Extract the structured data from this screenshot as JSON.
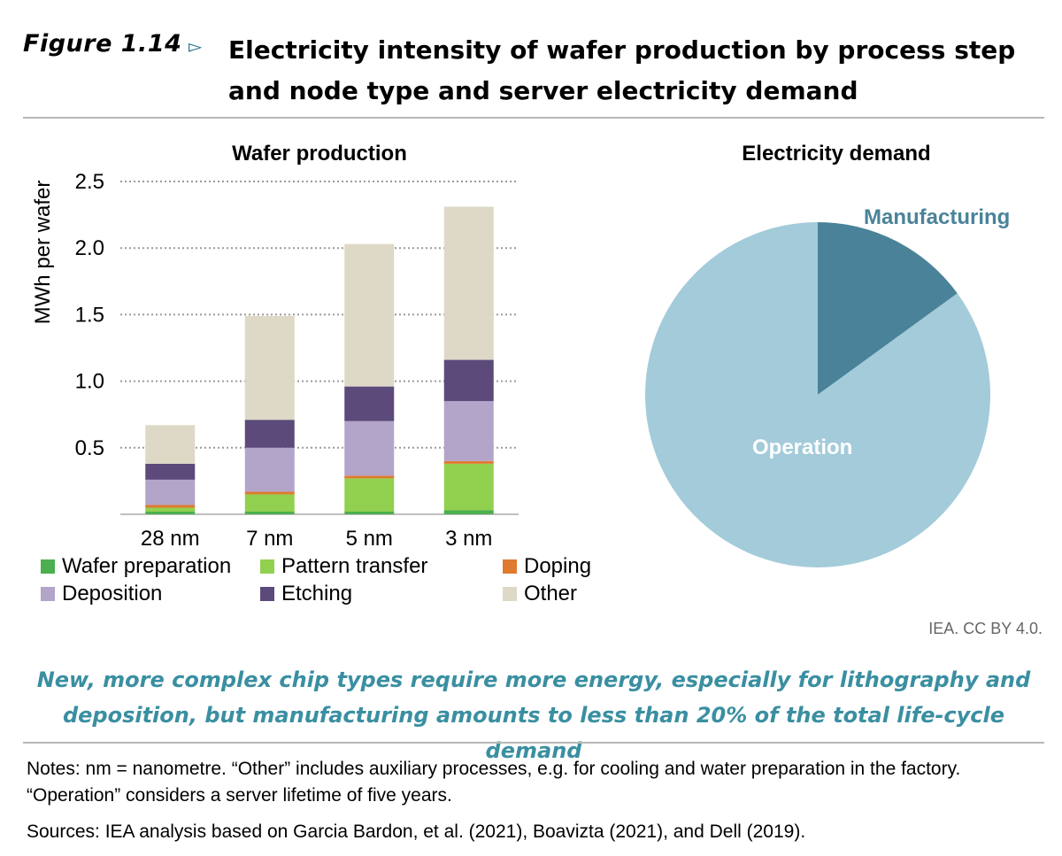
{
  "figure": {
    "label": "Figure 1.14",
    "arrow": "▻",
    "title": "Electricity intensity of wafer production by process step and node type and server electricity demand"
  },
  "left_panel": {
    "title": "Wafer production"
  },
  "right_panel": {
    "title": "Electricity demand"
  },
  "credit": "IEA. CC BY 4.0.",
  "caption": "New, more complex chip types require more energy, especially for lithography and deposition, but manufacturing amounts to less than 20% of the total life-cycle demand",
  "notes": "Notes: nm = nanometre. “Other” includes auxiliary processes, e.g. for cooling and water preparation in the factory. “Operation” considers a server lifetime of five years.",
  "sources": "Sources: IEA analysis based on Garcia Bardon, et al. (2021), Boavizta (2021), and Dell (2019).",
  "chart_data": [
    {
      "type": "bar",
      "stacked": true,
      "title": "Wafer production",
      "ylabel": "MWh per wafer",
      "ylim": [
        0,
        2.5
      ],
      "yticks": [
        0.5,
        1.0,
        1.5,
        2.0,
        2.5
      ],
      "ytick_labels": [
        "0.5",
        "1.0",
        "1.5",
        "2.0",
        "2.5"
      ],
      "grid": "horizontal dotted",
      "categories": [
        "28 nm",
        "7 nm",
        "5 nm",
        "3 nm"
      ],
      "series": [
        {
          "name": "Wafer preparation",
          "color": "#4caf50",
          "values": [
            0.02,
            0.02,
            0.02,
            0.03
          ]
        },
        {
          "name": "Pattern transfer",
          "color": "#92d050",
          "values": [
            0.03,
            0.13,
            0.25,
            0.35
          ]
        },
        {
          "name": "Doping",
          "color": "#e07a30",
          "values": [
            0.02,
            0.02,
            0.02,
            0.02
          ]
        },
        {
          "name": "Deposition",
          "color": "#b3a4c9",
          "values": [
            0.19,
            0.33,
            0.41,
            0.45
          ]
        },
        {
          "name": "Etching",
          "color": "#5b4a7a",
          "values": [
            0.12,
            0.21,
            0.26,
            0.31
          ]
        },
        {
          "name": "Other",
          "color": "#ddd9c6",
          "values": [
            0.29,
            0.78,
            1.07,
            1.15
          ]
        }
      ],
      "legend_position": "bottom"
    },
    {
      "type": "pie",
      "title": "Electricity demand",
      "slices": [
        {
          "label": "Manufacturing",
          "value": 15,
          "color": "#4a8399",
          "label_color": "#4a8399"
        },
        {
          "label": "Operation",
          "value": 85,
          "color": "#a3cbda",
          "label_color": "#ffffff"
        }
      ],
      "start_angle_deg": 0
    }
  ]
}
